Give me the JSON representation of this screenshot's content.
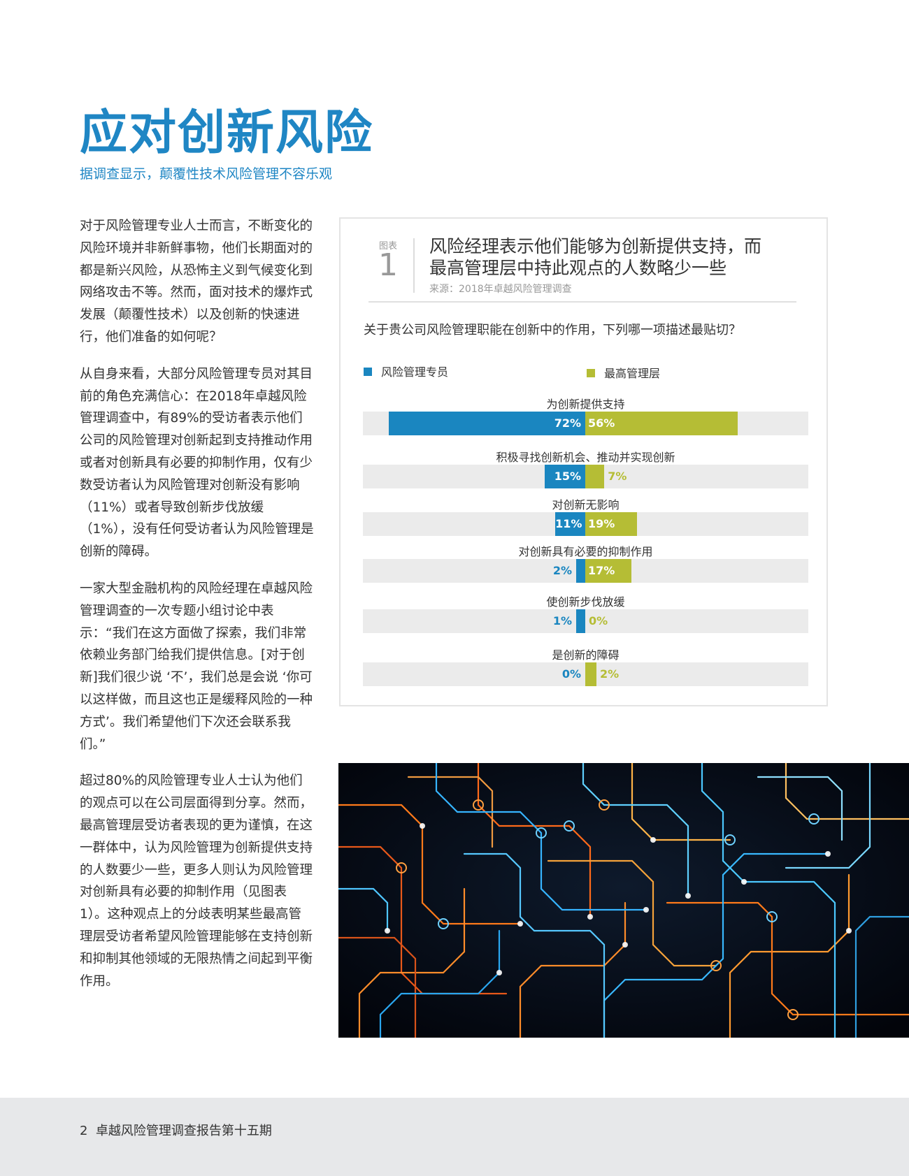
{
  "title": "应对创新风险",
  "subtitle": "据调查显示，颠覆性技术风险管理不容乐观",
  "body": {
    "paragraphs": [
      "对于风险管理专业人士而言，不断变化的风险环境并非新鲜事物，他们长期面对的都是新兴风险，从恐怖主义到气候变化到网络攻击不等。然而，面对技术的爆炸式发展（颠覆性技术）以及创新的快速进行，他们准备的如何呢？",
      "从自身来看，大部分风险管理专员对其目前的角色充满信心：在2018年卓越风险管理调查中，有89%的受访者表示他们公司的风险管理对创新起到支持推动作用或者对创新具有必要的抑制作用，仅有少数受访者认为风险管理对创新没有影响（11%）或者导致创新步伐放缓（1%），没有任何受访者认为风险管理是创新的障碍。",
      "一家大型金融机构的风险经理在卓越风险管理调查的一次专题小组讨论中表示：“我们在这方面做了探索，我们非常依赖业务部门给我们提供信息。[对于创新]我们很少说 ‘不’，我们总是会说 ‘你可以这样做，而且这也正是缓释风险的一种方式’。我们希望他们下次还会联系我们。”",
      "超过80%的风险管理专业人士认为他们的观点可以在公司层面得到分享。然而，最高管理层受访者表现的更为谨慎，在这一群体中，认为风险管理为创新提供支持的人数要少一些，更多人则认为风险管理对创新具有必要的抑制作用（见图表1）。这种观点上的分歧表明某些最高管理层受访者希望风险管理能够在支持创新和抑制其他领域的无限热情之间起到平衡作用。"
    ]
  },
  "figure": {
    "label": "图表",
    "number": "1",
    "title_line1": "风险经理表示他们能够为创新提供支持，而",
    "title_line2": "最高管理层中持此观点的人数略少一些",
    "source": "来源：2018年卓越风险管理调查",
    "question": "关于贵公司风险管理职能在创新中的作用，下列哪一项描述最贴切？"
  },
  "chart_data": {
    "type": "bar",
    "orientation": "diverging-horizontal",
    "series": [
      {
        "name": "风险管理专员",
        "color": "#1a86c0",
        "values": [
          72,
          15,
          11,
          2,
          1,
          0
        ]
      },
      {
        "name": "最高管理层",
        "color": "#b5bd35",
        "values": [
          56,
          7,
          19,
          17,
          0,
          2
        ]
      }
    ],
    "categories": [
      "为创新提供支持",
      "积极寻找创新机会、推动并实现创新",
      "对创新无影响",
      "对创新具有必要的抑制作用",
      "使创新步伐放缓",
      "是创新的障碍"
    ],
    "value_labels": {
      "风险管理专员": [
        "72%",
        "15%",
        "11%",
        "2%",
        "1%",
        "0%"
      ],
      "最高管理层": [
        "56%",
        "7%",
        "19%",
        "17%",
        "0%",
        "2%"
      ]
    },
    "legend_position": "top"
  },
  "footer": {
    "page_number": "2",
    "publication": "卓越风险管理调查报告第十五期"
  },
  "image": {
    "icon": "circuit-board-photo"
  }
}
